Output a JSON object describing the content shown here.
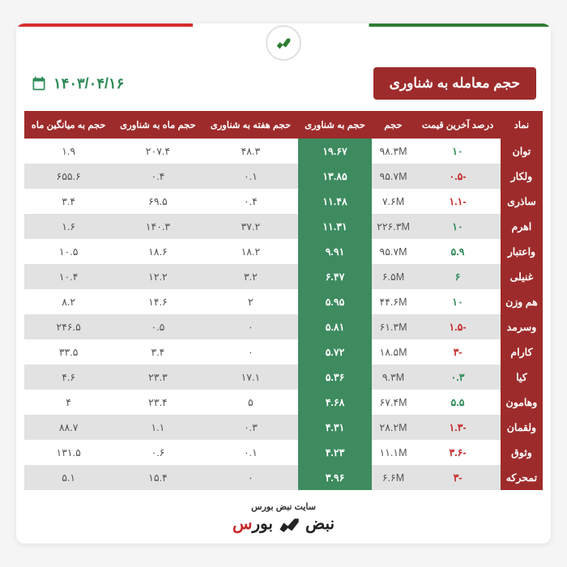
{
  "title": "حجم معامله به شناوری",
  "date": "۱۴۰۳/۰۴/۱۶",
  "logo_text": "نبض بورس",
  "columns": [
    "نماد",
    "درصد آخرین قیمت",
    "حجم",
    "حجم به شناوری",
    "حجم هفته به شناوری",
    "حجم ماه به شناوری",
    "حجم به میانگین ماه"
  ],
  "rows": [
    {
      "sym": "توان",
      "pct": "۱۰",
      "pct_sign": "pos",
      "vol": "۹۸.۳M",
      "ratio": "۱۹.۶۷",
      "wk": "۴۸.۳",
      "mo": "۲۰۷.۴",
      "avg": "۱.۹"
    },
    {
      "sym": "ولکار",
      "pct": "-۰.۵",
      "pct_sign": "neg",
      "vol": "۹۵.۷M",
      "ratio": "۱۳.۸۵",
      "wk": "۰.۱",
      "mo": "۰.۴",
      "avg": "۶۵۵.۶"
    },
    {
      "sym": "ساذری",
      "pct": "-۱.۱",
      "pct_sign": "neg",
      "vol": "۷.۶M",
      "ratio": "۱۱.۴۸",
      "wk": "۰.۴",
      "mo": "۶۹.۵",
      "avg": "۳.۴"
    },
    {
      "sym": "اهرم",
      "pct": "۱۰",
      "pct_sign": "pos",
      "vol": "۲۲۶.۳M",
      "ratio": "۱۱.۳۱",
      "wk": "۳۷.۲",
      "mo": "۱۴۰.۳",
      "avg": "۱.۶"
    },
    {
      "sym": "واعتبار",
      "pct": "۵.۹",
      "pct_sign": "pos",
      "vol": "۹۵.۷M",
      "ratio": "۹.۹۱",
      "wk": "۱۸.۲",
      "mo": "۱۸.۶",
      "avg": "۱۰.۵"
    },
    {
      "sym": "غنیلی",
      "pct": "۶",
      "pct_sign": "pos",
      "vol": "۶.۵M",
      "ratio": "۶.۴۷",
      "wk": "۳.۲",
      "mo": "۱۲.۲",
      "avg": "۱۰.۴"
    },
    {
      "sym": "هم وزن",
      "pct": "۱۰",
      "pct_sign": "pos",
      "vol": "۴۴.۶M",
      "ratio": "۵.۹۵",
      "wk": "۲",
      "mo": "۱۴.۶",
      "avg": "۸.۲"
    },
    {
      "sym": "وسرمد",
      "pct": "-۱.۵",
      "pct_sign": "neg",
      "vol": "۶۱.۳M",
      "ratio": "۵.۸۱",
      "wk": "۰",
      "mo": "۰.۵",
      "avg": "۲۴۶.۵"
    },
    {
      "sym": "کارام",
      "pct": "-۳",
      "pct_sign": "neg",
      "vol": "۱۸.۵M",
      "ratio": "۵.۷۲",
      "wk": "۰",
      "mo": "۳.۴",
      "avg": "۳۳.۵"
    },
    {
      "sym": "کیا",
      "pct": "۰.۳",
      "pct_sign": "pos",
      "vol": "۹.۳M",
      "ratio": "۵.۳۶",
      "wk": "۱۷.۱",
      "mo": "۲۳.۳",
      "avg": "۴.۶"
    },
    {
      "sym": "وهامون",
      "pct": "۵.۵",
      "pct_sign": "pos",
      "vol": "۶۷.۴M",
      "ratio": "۴.۶۸",
      "wk": "۵",
      "mo": "۲۳.۴",
      "avg": "۴"
    },
    {
      "sym": "ولقمان",
      "pct": "-۱.۳",
      "pct_sign": "neg",
      "vol": "۲۸.۲M",
      "ratio": "۴.۳۱",
      "wk": "۰.۳",
      "mo": "۱.۱",
      "avg": "۸۸.۷"
    },
    {
      "sym": "وثوق",
      "pct": "-۳.۶",
      "pct_sign": "neg",
      "vol": "۱۱.۱M",
      "ratio": "۴.۲۳",
      "wk": "۰.۱",
      "mo": "۰.۶",
      "avg": "۱۳۱.۵"
    },
    {
      "sym": "تمحرکه",
      "pct": "-۳",
      "pct_sign": "neg",
      "vol": "۶.۶M",
      "ratio": "۳.۹۶",
      "wk": "۰",
      "mo": "۱۵.۴",
      "avg": "۵.۱"
    }
  ],
  "footer_top": "سایت نبض بورس",
  "footer_brand_1": "نبض",
  "footer_brand_2": "بور",
  "footer_brand_3": "س"
}
